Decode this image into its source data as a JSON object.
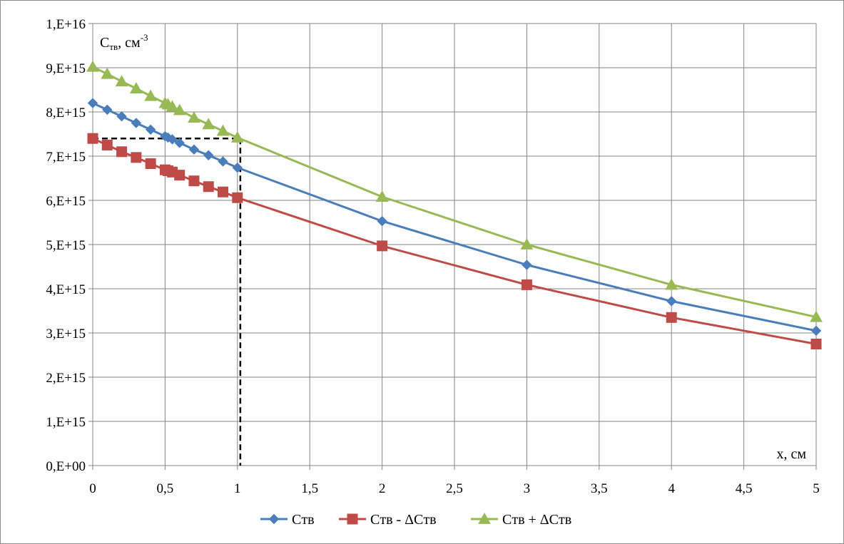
{
  "chart_data": {
    "type": "line",
    "ylabel_main": "C",
    "ylabel_sub": "тв",
    "ylabel_unit": ", см",
    "ylabel_exp": "-3",
    "xlabel": "x, см",
    "xlim": [
      0,
      5
    ],
    "ylim": [
      0,
      1e+16
    ],
    "grid": true,
    "legend_position": "bottom",
    "x_ticks": [
      "0",
      "0,5",
      "1",
      "1,5",
      "2",
      "2,5",
      "3",
      "3,5",
      "4",
      "4,5",
      "5"
    ],
    "y_ticks": [
      "0,E+00",
      "1,E+15",
      "2,E+15",
      "3,E+15",
      "4,E+15",
      "5,E+15",
      "6,E+15",
      "7,E+15",
      "8,E+15",
      "9,E+15",
      "1,E+16"
    ],
    "series": [
      {
        "name": "Cтв",
        "color": "#4a7ebb",
        "marker": "diamond",
        "x": [
          0,
          0.1,
          0.2,
          0.3,
          0.4,
          0.5,
          0.52,
          0.55,
          0.6,
          0.7,
          0.8,
          0.9,
          1,
          2,
          3,
          4,
          5
        ],
        "y": [
          8200000000000000.0,
          8050000000000000.0,
          7900000000000000.0,
          7750000000000000.0,
          7600000000000000.0,
          7450000000000000.0,
          7420000000000000.0,
          7380000000000000.0,
          7300000000000000.0,
          7150000000000000.0,
          7020000000000000.0,
          6880000000000000.0,
          6740000000000000.0,
          5530000000000000.0,
          4540000000000000.0,
          3720000000000000.0,
          3050000000000000.0
        ]
      },
      {
        "name": "Cтв - ΔCтв",
        "color": "#be4b48",
        "marker": "square",
        "x": [
          0,
          0.1,
          0.2,
          0.3,
          0.4,
          0.5,
          0.52,
          0.55,
          0.6,
          0.7,
          0.8,
          0.9,
          1,
          2,
          3,
          4,
          5
        ],
        "y": [
          7400000000000000.0,
          7250000000000000.0,
          7100000000000000.0,
          6970000000000000.0,
          6830000000000000.0,
          6690000000000000.0,
          6670000000000000.0,
          6640000000000000.0,
          6570000000000000.0,
          6440000000000000.0,
          6310000000000000.0,
          6190000000000000.0,
          6060000000000000.0,
          4970000000000000.0,
          4090000000000000.0,
          3350000000000000.0,
          2750000000000000.0
        ]
      },
      {
        "name": "Cтв + ΔCтв",
        "color": "#98b954",
        "marker": "triangle",
        "x": [
          0,
          0.1,
          0.2,
          0.3,
          0.4,
          0.5,
          0.52,
          0.55,
          0.6,
          0.7,
          0.8,
          0.9,
          1,
          2,
          3,
          4,
          5
        ],
        "y": [
          9020000000000000.0,
          8860000000000000.0,
          8690000000000000.0,
          8530000000000000.0,
          8360000000000000.0,
          8200000000000000.0,
          8170000000000000.0,
          8120000000000000.0,
          8040000000000000.0,
          7870000000000000.0,
          7720000000000000.0,
          7570000000000000.0,
          7420000000000000.0,
          6080000000000000.0,
          5000000000000000.0,
          4090000000000000.0,
          3360000000000000.0
        ]
      }
    ],
    "annotation": {
      "style": "dashed-black",
      "x": 1.02,
      "y": 7400000000000000.0
    }
  }
}
